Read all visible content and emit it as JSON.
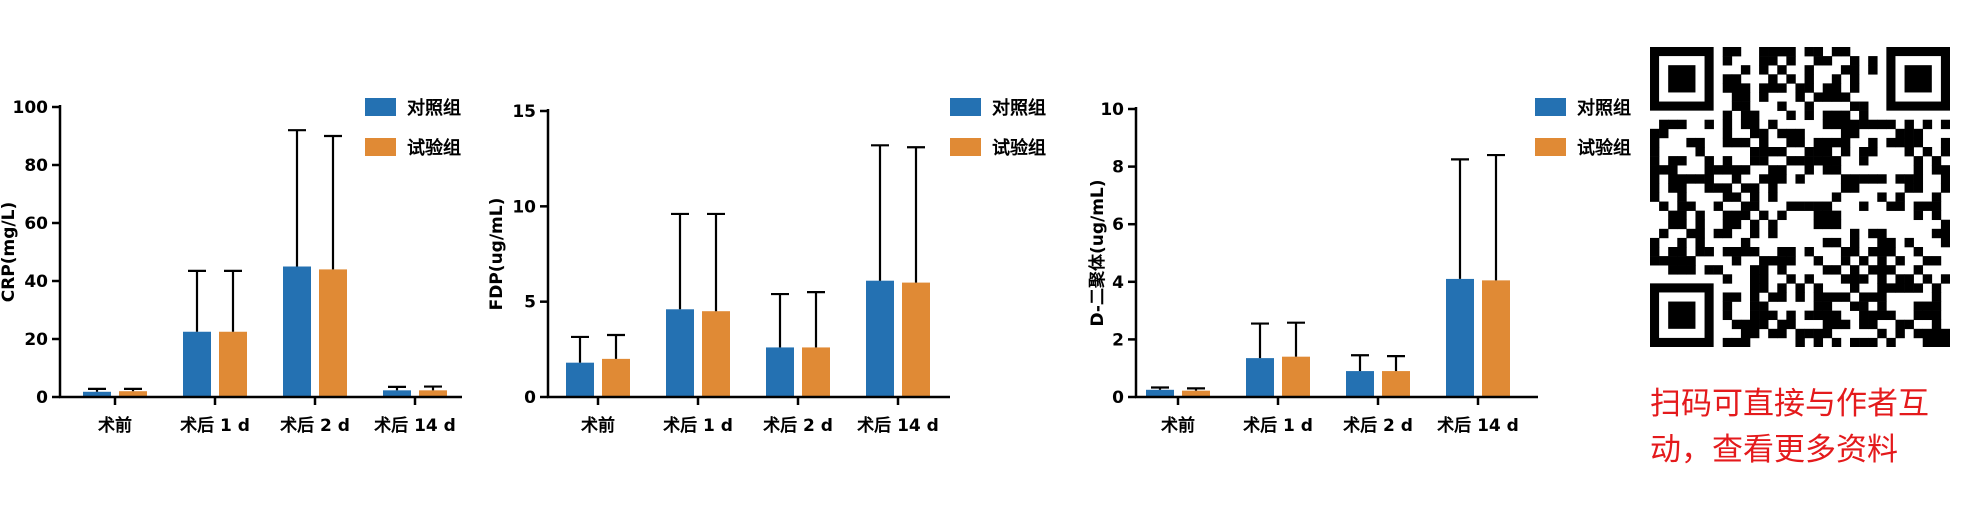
{
  "chart_data": [
    {
      "type": "bar",
      "ylabel": "CRP(mg/L)",
      "ylim": [
        0,
        100
      ],
      "yticks": [
        "0",
        "20",
        "40",
        "60",
        "80",
        "100"
      ],
      "categories": [
        "术前",
        "术后 1 d",
        "术后 2 d",
        "术后 14 d"
      ],
      "series": [
        {
          "name": "对照组",
          "color": "#2471b2",
          "values": [
            1.8,
            22.5,
            45,
            2.3
          ],
          "errors": [
            1.0,
            21,
            47,
            1.2
          ]
        },
        {
          "name": "试验组",
          "color": "#e08a35",
          "values": [
            2.0,
            22.5,
            44,
            2.3
          ],
          "errors": [
            0.8,
            21,
            46,
            1.3
          ]
        }
      ],
      "legend": "top-right"
    },
    {
      "type": "bar",
      "ylabel": "FDP(ug/mL)",
      "ylim": [
        0,
        15
      ],
      "yticks": [
        "0",
        "5",
        "10",
        "15"
      ],
      "categories": [
        "术前",
        "术后 1 d",
        "术后 2 d",
        "术后 14 d"
      ],
      "series": [
        {
          "name": "对照组",
          "color": "#2471b2",
          "values": [
            1.8,
            4.6,
            2.6,
            6.1
          ],
          "errors": [
            1.35,
            5.0,
            2.8,
            7.1
          ]
        },
        {
          "name": "试验组",
          "color": "#e08a35",
          "values": [
            2.0,
            4.5,
            2.6,
            6.0
          ],
          "errors": [
            1.25,
            5.1,
            2.9,
            7.1
          ]
        }
      ],
      "legend": "top-right"
    },
    {
      "type": "bar",
      "ylabel": "D-二聚体(ug/mL)",
      "ylim": [
        0,
        10
      ],
      "yticks": [
        "0",
        "2",
        "4",
        "6",
        "8",
        "10"
      ],
      "categories": [
        "术前",
        "术后 1 d",
        "术后 2 d",
        "术后 14 d"
      ],
      "series": [
        {
          "name": "对照组",
          "color": "#2471b2",
          "values": [
            0.25,
            1.35,
            0.9,
            4.1
          ],
          "errors": [
            0.08,
            1.2,
            0.55,
            4.15
          ]
        },
        {
          "name": "试验组",
          "color": "#e08a35",
          "values": [
            0.22,
            1.4,
            0.9,
            4.05
          ],
          "errors": [
            0.08,
            1.18,
            0.52,
            4.35
          ]
        }
      ],
      "legend": "top-right"
    }
  ],
  "qr": {
    "caption_line1": "扫码可直接与作者互",
    "caption_line2": "动，查看更多资料",
    "caption_color": "#e41a1c"
  }
}
